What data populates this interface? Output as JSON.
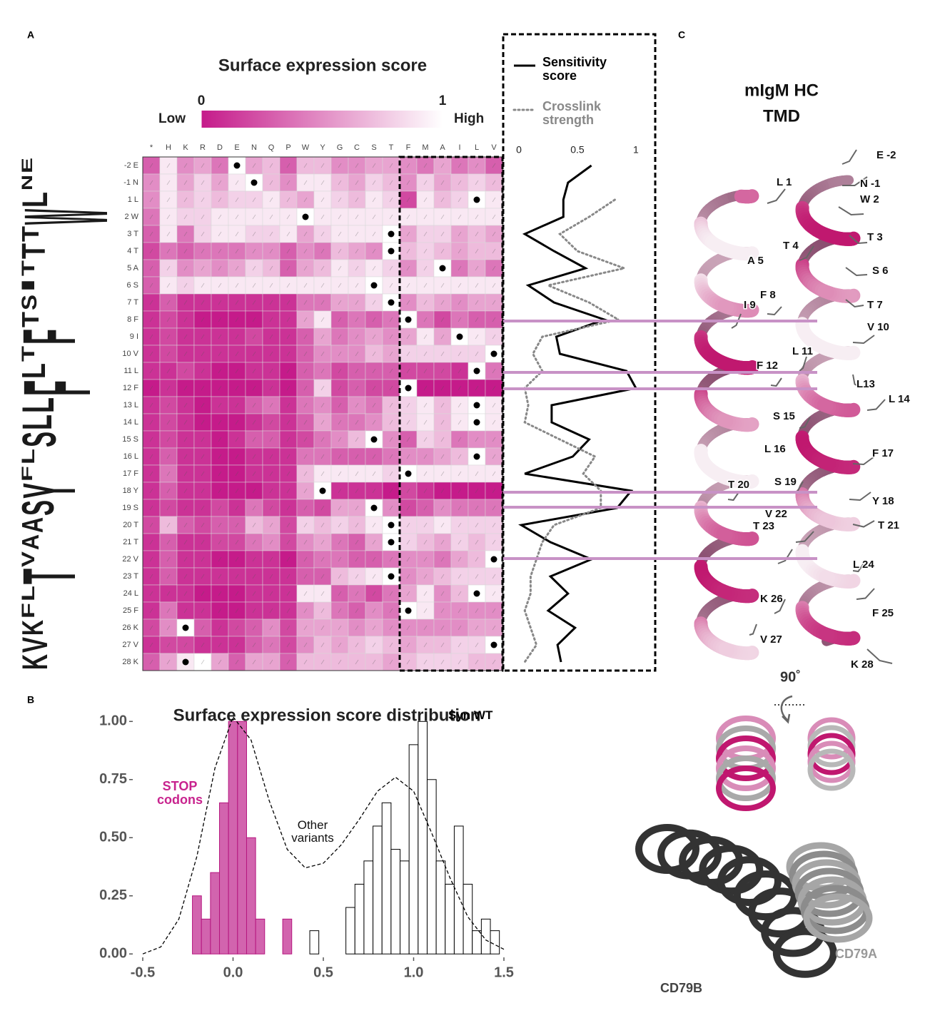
{
  "panel_labels": [
    "A",
    "B",
    "C"
  ],
  "chart_data": [
    {
      "type": "heatmap",
      "title": "Surface expression score",
      "colorbar": {
        "lim": [
          0,
          1
        ],
        "ticks": [
          0,
          1
        ],
        "low_label": "Low",
        "high_label": "High",
        "colors": [
          "#c51b8a",
          "#ffffff"
        ]
      },
      "categories": [
        "*",
        "H",
        "K",
        "R",
        "D",
        "E",
        "N",
        "Q",
        "P",
        "W",
        "Y",
        "G",
        "C",
        "S",
        "T",
        "F",
        "M",
        "A",
        "I",
        "L",
        "V"
      ],
      "rows": [
        "-2 E",
        "-1 N",
        "1 L",
        "2 W",
        "3 T",
        "4 T",
        "5 A",
        "6 S",
        "7 T",
        "8 F",
        "9 I",
        "10 V",
        "11 L",
        "12 F",
        "13 L",
        "14 L",
        "15 S",
        "16 L",
        "17 F",
        "18 Y",
        "19 S",
        "20 T",
        "21 T",
        "22 V",
        "23 T",
        "24 L",
        "25 F",
        "26 K",
        "27 V",
        "28 K"
      ],
      "wild_type": [
        "E",
        "N",
        "L",
        "W",
        "T",
        "T",
        "A",
        "S",
        "T",
        "F",
        "I",
        "V",
        "L",
        "F",
        "L",
        "L",
        "S",
        "L",
        "F",
        "Y",
        "S",
        "T",
        "T",
        "V",
        "T",
        "L",
        "F",
        "K",
        "V",
        "K"
      ],
      "values": [
        [
          0.3,
          0.9,
          0.5,
          0.6,
          0.4,
          1,
          0.6,
          0.7,
          0.3,
          0.7,
          0.7,
          0.5,
          0.5,
          0.6,
          0.6,
          0.5,
          0.4,
          0.6,
          0.4,
          0.5,
          0.3
        ],
        [
          0.5,
          0.9,
          0.6,
          0.8,
          0.6,
          0.9,
          1,
          0.7,
          0.5,
          0.9,
          0.9,
          0.7,
          0.6,
          0.8,
          0.7,
          0.5,
          0.8,
          0.6,
          0.7,
          0.8,
          0.7
        ],
        [
          0.5,
          0.9,
          0.7,
          0.8,
          0.7,
          0.8,
          0.8,
          0.9,
          0.7,
          0.6,
          0.9,
          0.8,
          0.7,
          0.9,
          0.8,
          0.2,
          0.9,
          0.7,
          0.8,
          1,
          0.9
        ],
        [
          0.4,
          0.9,
          0.8,
          0.8,
          0.9,
          0.9,
          0.9,
          0.9,
          0.9,
          1,
          0.9,
          0.9,
          0.9,
          0.9,
          0.9,
          0.9,
          0.9,
          0.9,
          0.9,
          0.9,
          0.9
        ],
        [
          0.3,
          0.9,
          0.4,
          0.8,
          0.9,
          0.9,
          0.8,
          0.8,
          0.9,
          0.6,
          0.8,
          0.9,
          0.9,
          0.9,
          1,
          0.6,
          0.8,
          0.8,
          0.6,
          0.7,
          0.6
        ],
        [
          0.2,
          0.4,
          0.3,
          0.4,
          0.4,
          0.4,
          0.5,
          0.5,
          0.3,
          0.5,
          0.4,
          0.7,
          0.6,
          0.5,
          1,
          0.7,
          0.8,
          0.7,
          0.6,
          0.7,
          0.7
        ],
        [
          0.3,
          0.8,
          0.5,
          0.6,
          0.5,
          0.6,
          0.8,
          0.7,
          0.3,
          0.6,
          0.7,
          0.9,
          0.8,
          0.9,
          0.8,
          0.5,
          0.8,
          1,
          0.4,
          0.6,
          0.4
        ],
        [
          0.3,
          0.9,
          0.8,
          0.9,
          0.9,
          0.9,
          0.9,
          0.9,
          0.9,
          0.9,
          0.9,
          0.9,
          0.9,
          1,
          0.9,
          0.9,
          0.9,
          0.9,
          0.9,
          0.9,
          0.9
        ],
        [
          0.1,
          0.3,
          0.1,
          0.1,
          0.1,
          0.1,
          0.1,
          0.1,
          0.1,
          0.4,
          0.4,
          0.6,
          0.6,
          0.8,
          1,
          0.5,
          0.7,
          0.6,
          0.5,
          0.6,
          0.6
        ],
        [
          0.1,
          0.2,
          0.1,
          0,
          0,
          0,
          0,
          0.1,
          0.1,
          0.6,
          0.9,
          0.3,
          0.4,
          0.3,
          0.4,
          1,
          0.4,
          0.2,
          0.4,
          0.3,
          0.3
        ],
        [
          0.1,
          0.2,
          0.1,
          0.1,
          0.1,
          0.1,
          0.2,
          0.1,
          0.1,
          0.3,
          0.6,
          0.4,
          0.5,
          0.6,
          0.5,
          0.6,
          0.9,
          0.6,
          1,
          0.9,
          0.8
        ],
        [
          0.1,
          0.2,
          0.1,
          0.1,
          0.1,
          0.1,
          0.1,
          0.1,
          0.1,
          0.3,
          0.5,
          0.5,
          0.5,
          0.7,
          0.6,
          0.8,
          0.8,
          0.8,
          0.8,
          0.8,
          1
        ],
        [
          0.1,
          0.1,
          0.2,
          0.1,
          0,
          0,
          0.1,
          0.1,
          0,
          0.3,
          0.4,
          0.2,
          0.3,
          0.3,
          0.3,
          0.2,
          0.2,
          0.2,
          0.1,
          1,
          0.4
        ],
        [
          0,
          0.1,
          0,
          0,
          0,
          0,
          0,
          0.1,
          0,
          0.3,
          0.8,
          0.2,
          0.3,
          0.2,
          0.2,
          1,
          0,
          0,
          0,
          0,
          0
        ],
        [
          0.1,
          0.2,
          0.1,
          0,
          0.1,
          0.1,
          0.3,
          0.4,
          0.1,
          0.4,
          0.5,
          0.3,
          0.5,
          0.4,
          0.7,
          0.8,
          0.9,
          0.7,
          0.9,
          1,
          0.9
        ],
        [
          0.1,
          0.2,
          0.1,
          0,
          0,
          0,
          0.1,
          0.2,
          0.1,
          0.3,
          0.6,
          0.4,
          0.4,
          0.5,
          0.7,
          0.8,
          0.9,
          0.7,
          0.9,
          1,
          0.9
        ],
        [
          0.1,
          0.2,
          0.1,
          0.1,
          0,
          0.1,
          0.3,
          0.3,
          0.1,
          0.2,
          0.4,
          0.5,
          0.7,
          1,
          0.5,
          0.3,
          0.8,
          0.7,
          0.4,
          0.5,
          0.5
        ],
        [
          0.1,
          0.3,
          0.1,
          0.1,
          0,
          0,
          0.1,
          0.1,
          0.1,
          0.4,
          0.4,
          0.3,
          0.3,
          0.3,
          0.4,
          0.5,
          0.5,
          0.6,
          0.7,
          1,
          0.6
        ],
        [
          0.1,
          0.4,
          0.1,
          0.1,
          0,
          0,
          0.1,
          0.1,
          0.1,
          0.7,
          0.9,
          0.9,
          0.9,
          0.9,
          0.8,
          1,
          0.9,
          0.9,
          0.9,
          0.9,
          0.9
        ],
        [
          0.1,
          0.3,
          0.1,
          0.1,
          0,
          0,
          0,
          0.1,
          0.1,
          0.6,
          1,
          0.1,
          0.1,
          0.1,
          0,
          0.2,
          0.1,
          0,
          0,
          0,
          0
        ],
        [
          0.1,
          0.2,
          0.1,
          0.1,
          0.2,
          0.1,
          0.4,
          0.2,
          0.1,
          0.3,
          0.2,
          0.6,
          0.6,
          1,
          0.5,
          0.2,
          0.3,
          0.5,
          0.4,
          0.4,
          0.4
        ],
        [
          0.2,
          0.7,
          0.3,
          0.2,
          0.3,
          0.3,
          0.7,
          0.6,
          0.2,
          0.8,
          0.7,
          0.8,
          0.7,
          0.9,
          1,
          0.8,
          0.8,
          0.9,
          0.8,
          0.8,
          0.8
        ],
        [
          0.1,
          0.3,
          0.1,
          0.1,
          0.2,
          0.2,
          0.4,
          0.5,
          0.2,
          0.5,
          0.6,
          0.4,
          0.3,
          0.6,
          1,
          0.8,
          0.7,
          0.6,
          0.8,
          0.7,
          0.8
        ],
        [
          0.1,
          0.3,
          0.1,
          0.1,
          0,
          0,
          0.1,
          0.1,
          0,
          0.3,
          0.4,
          0.4,
          0.3,
          0.3,
          0.4,
          0.5,
          0.5,
          0.4,
          0.6,
          0.7,
          1
        ],
        [
          0.1,
          0.3,
          0.1,
          0.1,
          0.1,
          0.1,
          0.1,
          0.1,
          0.1,
          0.3,
          0.3,
          0.7,
          0.8,
          0.9,
          1,
          0.5,
          0.6,
          0.7,
          0.8,
          0.8,
          0.8
        ],
        [
          0.1,
          0.1,
          0.1,
          0,
          0,
          0,
          0.1,
          0.1,
          0.1,
          0.9,
          0.9,
          0.3,
          0.4,
          0.2,
          0.4,
          0.6,
          0.9,
          0.5,
          0.7,
          1,
          0.9
        ],
        [
          0.1,
          0.4,
          0.1,
          0.1,
          0,
          0,
          0.1,
          0.1,
          0.1,
          0.5,
          0.7,
          0.4,
          0.3,
          0.5,
          0.4,
          1,
          0.9,
          0.5,
          0.5,
          0.5,
          0.5
        ],
        [
          0.2,
          0.5,
          1,
          0.3,
          0.1,
          0.2,
          0.3,
          0.5,
          0.2,
          0.6,
          0.6,
          0.6,
          0.5,
          0.6,
          0.5,
          0.5,
          0.5,
          0.5,
          0.5,
          0.6,
          0.6
        ],
        [
          0.1,
          0.2,
          0.2,
          0.1,
          0.1,
          0.1,
          0.3,
          0.4,
          0.2,
          0.5,
          0.7,
          0.6,
          0.7,
          0.8,
          0.7,
          0.6,
          0.7,
          0.7,
          0.8,
          0.8,
          1
        ],
        [
          0.3,
          0.6,
          0.9,
          1,
          0.6,
          0.3,
          0.6,
          0.6,
          0.3,
          0.7,
          0.7,
          0.7,
          0.7,
          0.7,
          0.6,
          0.7,
          0.8,
          0.8,
          0.8,
          0.7,
          0.7
        ]
      ],
      "logo": {
        "letters": [
          "E",
          "N",
          "L",
          "W",
          "T",
          "T",
          "T",
          "I",
          "S",
          "T",
          "F",
          "T",
          "L",
          "F",
          "L",
          "L",
          "S",
          "L",
          "F",
          "Y",
          "S",
          "A",
          "A",
          "V",
          "T",
          "L",
          "F",
          "K",
          "V",
          "K"
        ],
        "heights": [
          0.5,
          0.5,
          1.2,
          4,
          0.8,
          1.1,
          0.6,
          0.6,
          0.7,
          0.8,
          2.5,
          0.6,
          1.1,
          3.2,
          1.5,
          1.4,
          1.6,
          0.6,
          0.5,
          2.5,
          1.5,
          1,
          0.8,
          0.6,
          2.5,
          0.6,
          0.6,
          1,
          1.2,
          1.2
        ]
      }
    },
    {
      "type": "line",
      "xlim": [
        -0.134,
        1.165
      ],
      "xticks": [
        0,
        0.5,
        1
      ],
      "series": [
        {
          "name": "Sensitivity score",
          "color": "#000000",
          "line_style": "solid",
          "values": [
            0.62,
            0.42,
            0.38,
            0.38,
            0.05,
            0.3,
            0.57,
            0.08,
            0.3,
            0.73,
            0.32,
            0.35,
            0.92,
            1.0,
            0.28,
            0.28,
            0.6,
            0.46,
            0.05,
            0.96,
            0.84,
            0.02,
            0.27,
            0.62,
            0.27,
            0.42,
            0.25,
            0.48,
            0.33,
            0.36
          ]
        },
        {
          "name": "Crosslink strength",
          "color": "#888888",
          "line_style": "dotted",
          "values": [
            null,
            null,
            0.82,
            0.6,
            0.35,
            0.5,
            0.9,
            0.25,
            0.6,
            0.85,
            0.2,
            0.12,
            0.2,
            0.05,
            0.08,
            0.05,
            0.35,
            0.65,
            0.55,
            0.7,
            0.7,
            0.3,
            0.2,
            0.15,
            0.1,
            0.1,
            0.05,
            0.1,
            0.15,
            0.05
          ]
        }
      ]
    },
    {
      "type": "histogram",
      "title": "Surface expression score distribution",
      "bins": [
        -0.225,
        -0.175,
        -0.125,
        -0.075,
        -0.025,
        0.025,
        0.075,
        0.125,
        0.175,
        0.225,
        0.275,
        0.325,
        0.375,
        0.425,
        0.475,
        0.525,
        0.575,
        0.625,
        0.675,
        0.725,
        0.775,
        0.825,
        0.875,
        0.925,
        0.975,
        1.025,
        1.075,
        1.125,
        1.175,
        1.225,
        1.275,
        1.325,
        1.375,
        1.425,
        1.475
      ],
      "series": [
        {
          "name": "STOP codons",
          "color": "#d264ae",
          "values": [
            0.25,
            0.15,
            0.35,
            0.65,
            1.0,
            1.0,
            0.5,
            0.15,
            0,
            0,
            0.15,
            0,
            0,
            0,
            0,
            0,
            0,
            0,
            0,
            0,
            0,
            0,
            0,
            0,
            0,
            0,
            0,
            0,
            0,
            0,
            0,
            0,
            0,
            0
          ]
        },
        {
          "name": "Syn WT",
          "color": "#ffffff",
          "values": [
            0,
            0,
            0,
            0,
            0,
            0,
            0,
            0,
            0,
            0,
            0,
            0,
            0,
            0.1,
            0,
            0,
            0,
            0.2,
            0.3,
            0.4,
            0.55,
            0.65,
            0.45,
            0.4,
            0.9,
            1.0,
            0.75,
            0.4,
            0.3,
            0.55,
            0.3,
            0.1,
            0.15,
            0.1
          ]
        }
      ],
      "density": {
        "name": "Other variants",
        "x": [
          -0.5,
          -0.4,
          -0.3,
          -0.2,
          -0.1,
          0,
          0.1,
          0.2,
          0.3,
          0.4,
          0.5,
          0.6,
          0.7,
          0.8,
          0.9,
          1,
          1.1,
          1.2,
          1.3,
          1.4,
          1.5
        ],
        "values": [
          0.0,
          0.03,
          0.15,
          0.42,
          0.8,
          1.02,
          0.92,
          0.66,
          0.45,
          0.37,
          0.39,
          0.47,
          0.58,
          0.7,
          0.76,
          0.7,
          0.52,
          0.33,
          0.16,
          0.06,
          0.02
        ]
      },
      "xlim": [
        -0.5,
        1.5
      ],
      "ylim": [
        -0.03,
        1.05
      ],
      "xticks": [
        -0.5,
        {
          "value": 0,
          "label": "0.0"
        },
        0.5,
        {
          "value": 1,
          "label": "1.0"
        },
        1.5
      ],
      "yticks": [
        {
          "value": 0,
          "label": "0.00"
        },
        {
          "value": 0.25,
          "label": "0.25"
        },
        {
          "value": 0.5,
          "label": "0.50"
        },
        {
          "value": 0.75,
          "label": "0.75"
        },
        {
          "value": 1,
          "label": "1.00"
        }
      ]
    }
  ],
  "structure": {
    "title_lines": [
      "mIgM HC",
      "TMD"
    ],
    "residue_labels": [
      "E -2",
      "N -1",
      "L 1",
      "W 2",
      "T 3",
      "T 4",
      "A 5",
      "S 6",
      "F 8",
      "T 7",
      "I 9",
      "V 10",
      "L 11",
      "F 12",
      "L13",
      "L 14",
      "S 15",
      "L 16",
      "F 17",
      "T 20",
      "S 19",
      "Y 18",
      "T 21",
      "V 22",
      "T 23",
      "L 24",
      "K 26",
      "F 25",
      "V 27",
      "K 28"
    ],
    "rotation_label": "90˚",
    "partners": [
      "CD79A",
      "CD79B"
    ]
  }
}
